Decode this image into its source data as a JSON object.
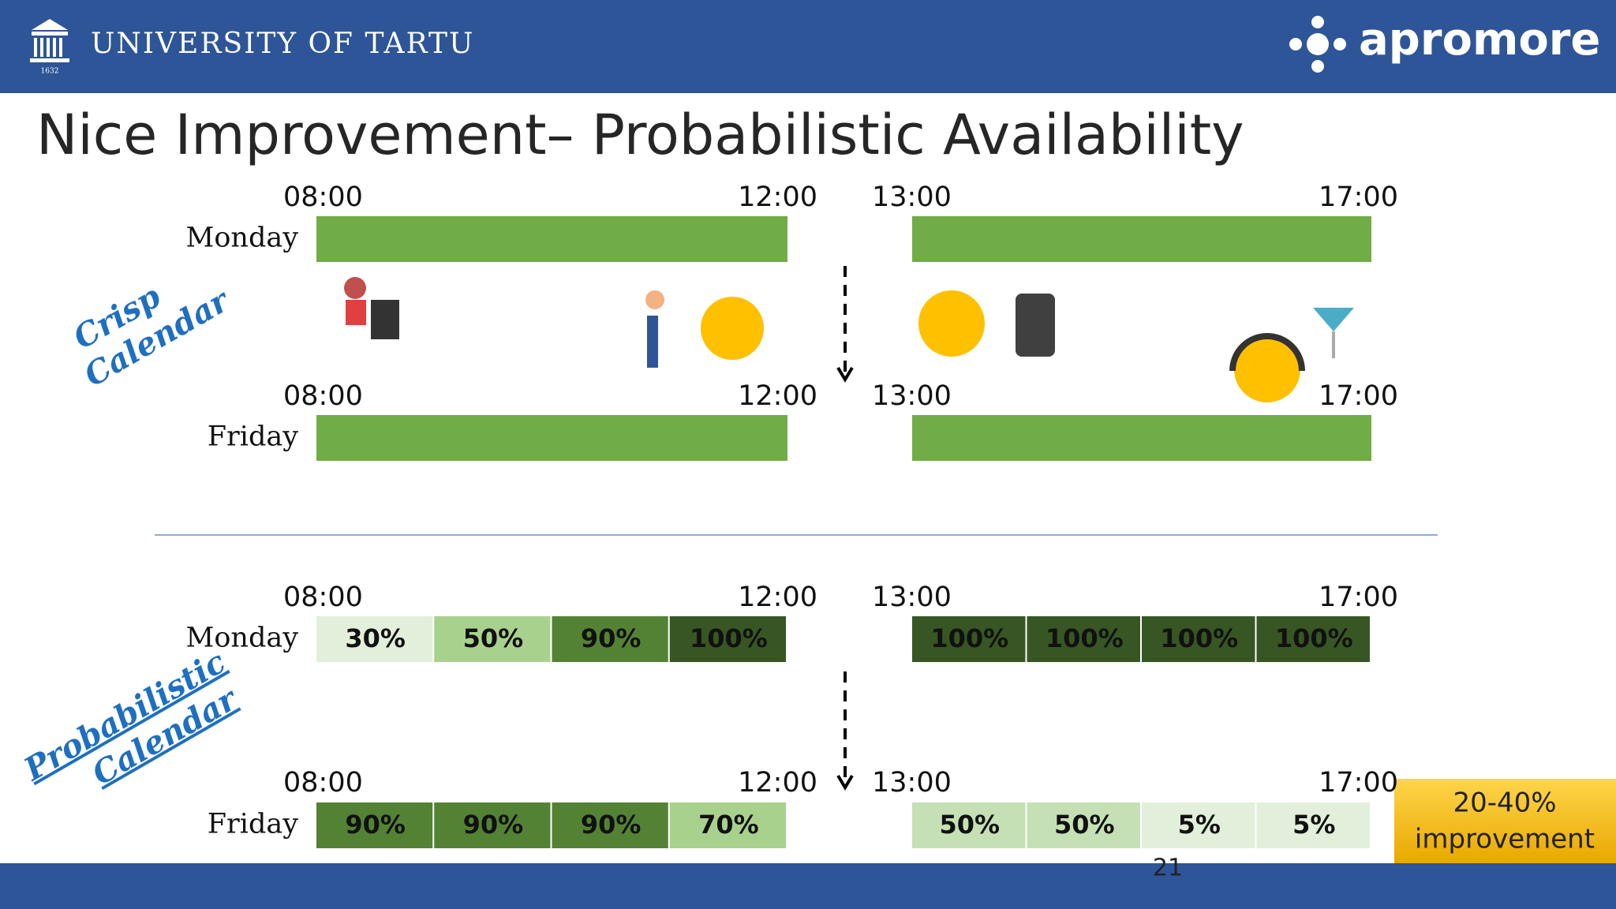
{
  "header": {
    "university": "UNIVERSITY OF TARTU",
    "year": "1632",
    "brand": "apromore"
  },
  "title": "Nice Improvement– Probabilistic Availability",
  "crisp": {
    "label": [
      "Crisp",
      "Calendar"
    ],
    "bar_color": "#70ad47",
    "rows": [
      {
        "day": "Monday",
        "times": [
          "08:00",
          "12:00",
          "13:00",
          "17:00"
        ]
      },
      {
        "day": "Friday",
        "times": [
          "08:00",
          "12:00",
          "13:00",
          "17:00"
        ]
      }
    ]
  },
  "probabilistic": {
    "label": [
      "Probabilistic",
      "Calendar"
    ],
    "rows": [
      {
        "day": "Monday",
        "times": [
          "08:00",
          "12:00",
          "13:00",
          "17:00"
        ],
        "cells": [
          {
            "text": "30%",
            "color": "#e2efda"
          },
          {
            "text": "50%",
            "color": "#a9d18e"
          },
          {
            "text": "90%",
            "color": "#548235"
          },
          {
            "text": "100%",
            "color": "#375623"
          },
          {
            "text": "100%",
            "color": "#375623"
          },
          {
            "text": "100%",
            "color": "#375623"
          },
          {
            "text": "100%",
            "color": "#375623"
          },
          {
            "text": "100%",
            "color": "#375623"
          }
        ]
      },
      {
        "day": "Friday",
        "times": [
          "08:00",
          "12:00",
          "13:00",
          "17:00"
        ],
        "cells": [
          {
            "text": "90%",
            "color": "#548235"
          },
          {
            "text": "90%",
            "color": "#548235"
          },
          {
            "text": "90%",
            "color": "#548235"
          },
          {
            "text": "70%",
            "color": "#a9d18e"
          },
          {
            "text": "50%",
            "color": "#c5e0b4"
          },
          {
            "text": "50%",
            "color": "#c5e0b4"
          },
          {
            "text": "5%",
            "color": "#e2efda"
          },
          {
            "text": "5%",
            "color": "#e2efda"
          }
        ]
      }
    ]
  },
  "callout": [
    "20-40%",
    "improvement"
  ],
  "page_number": "21"
}
